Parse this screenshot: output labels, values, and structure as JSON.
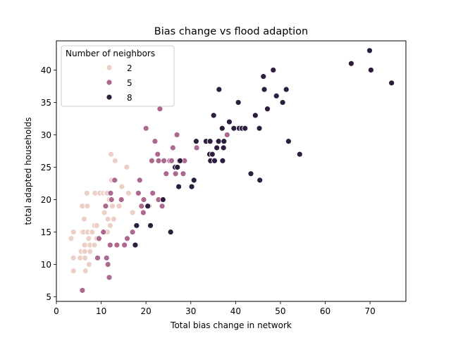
{
  "chart_data": {
    "type": "scatter",
    "title": "Bias change vs flood adaption",
    "xlabel": "Total bias change in network",
    "ylabel": "total adapted households",
    "xlim": [
      0,
      78
    ],
    "ylim": [
      4.3,
      44.5
    ],
    "xticks": [
      0,
      10,
      20,
      30,
      40,
      50,
      60,
      70
    ],
    "yticks": [
      5,
      10,
      15,
      20,
      25,
      30,
      35,
      40
    ],
    "grid": false,
    "legend": {
      "title": "Number of neighbors",
      "placement": "top-left"
    },
    "series": [
      {
        "name": "2",
        "color": "#ebd0c8",
        "points": [
          [
            3.3,
            14
          ],
          [
            3.8,
            15
          ],
          [
            3.8,
            11
          ],
          [
            3.8,
            9
          ],
          [
            5.3,
            11
          ],
          [
            5.5,
            12
          ],
          [
            5.8,
            19
          ],
          [
            5.8,
            15
          ],
          [
            6.0,
            15
          ],
          [
            6.2,
            17
          ],
          [
            6.3,
            13
          ],
          [
            6.3,
            12
          ],
          [
            6.4,
            11
          ],
          [
            6.5,
            9
          ],
          [
            6.8,
            21
          ],
          [
            6.9,
            19
          ],
          [
            7.0,
            15
          ],
          [
            7.2,
            14
          ],
          [
            7.3,
            10
          ],
          [
            7.5,
            13
          ],
          [
            7.5,
            12
          ],
          [
            7.9,
            15
          ],
          [
            8.0,
            15
          ],
          [
            8.5,
            16
          ],
          [
            8.5,
            13
          ],
          [
            8.6,
            21
          ],
          [
            9.0,
            16
          ],
          [
            9.0,
            14
          ],
          [
            9.7,
            21
          ],
          [
            10.5,
            21
          ],
          [
            10.7,
            18
          ],
          [
            11.1,
            21
          ],
          [
            11.3,
            21
          ],
          [
            11.4,
            15
          ],
          [
            11.5,
            17
          ],
          [
            11.8,
            20
          ],
          [
            12.0,
            16
          ],
          [
            12.2,
            27
          ],
          [
            12.3,
            23
          ],
          [
            12.5,
            19
          ],
          [
            12.8,
            17
          ],
          [
            13.1,
            26
          ],
          [
            13.2,
            23
          ],
          [
            14.0,
            19
          ],
          [
            14.6,
            22
          ],
          [
            15.7,
            25
          ],
          [
            16.1,
            21
          ],
          [
            17.0,
            18
          ]
        ]
      },
      {
        "name": "5",
        "color": "#ad6890",
        "points": [
          [
            5.8,
            6
          ],
          [
            9.2,
            11
          ],
          [
            9.5,
            14
          ],
          [
            10.5,
            15
          ],
          [
            11.0,
            19
          ],
          [
            11.2,
            11
          ],
          [
            11.5,
            10
          ],
          [
            11.8,
            8
          ],
          [
            12.0,
            13
          ],
          [
            12.1,
            21
          ],
          [
            12.3,
            20
          ],
          [
            13.0,
            23
          ],
          [
            13.5,
            13
          ],
          [
            14.5,
            20
          ],
          [
            15.2,
            13
          ],
          [
            15.8,
            14
          ],
          [
            17.0,
            15
          ],
          [
            18.3,
            21
          ],
          [
            18.6,
            23
          ],
          [
            19.0,
            19
          ],
          [
            19.4,
            18
          ],
          [
            19.5,
            20
          ],
          [
            20.0,
            31
          ],
          [
            20.6,
            19
          ],
          [
            21.3,
            26
          ],
          [
            21.5,
            21
          ],
          [
            22.0,
            29
          ],
          [
            22.6,
            27
          ],
          [
            22.8,
            26
          ],
          [
            22.8,
            20
          ],
          [
            23.1,
            34
          ],
          [
            23.6,
            19
          ],
          [
            24.0,
            26
          ],
          [
            24.5,
            24
          ],
          [
            25.3,
            26
          ],
          [
            25.7,
            26
          ],
          [
            26.0,
            28
          ],
          [
            26.5,
            25
          ],
          [
            26.6,
            24
          ],
          [
            26.9,
            30
          ],
          [
            27.4,
            26
          ],
          [
            28.3,
            24
          ],
          [
            28.6,
            26
          ],
          [
            31.3,
            28
          ],
          [
            38.1,
            30
          ],
          [
            40.5,
            31
          ]
        ]
      },
      {
        "name": "8",
        "color": "#2d1e3e",
        "points": [
          [
            17.6,
            13
          ],
          [
            17.9,
            16
          ],
          [
            20.4,
            19
          ],
          [
            21.0,
            16
          ],
          [
            23.8,
            20
          ],
          [
            25.5,
            15
          ],
          [
            26.5,
            25
          ],
          [
            27.0,
            25
          ],
          [
            27.3,
            22
          ],
          [
            27.6,
            26
          ],
          [
            30.2,
            22
          ],
          [
            30.7,
            23
          ],
          [
            31.2,
            29
          ],
          [
            33.4,
            29
          ],
          [
            34.2,
            27
          ],
          [
            34.3,
            29
          ],
          [
            34.4,
            26
          ],
          [
            34.8,
            27
          ],
          [
            35.1,
            33
          ],
          [
            35.3,
            26
          ],
          [
            35.8,
            28
          ],
          [
            36.2,
            29
          ],
          [
            36.3,
            37
          ],
          [
            37.0,
            31
          ],
          [
            37.1,
            26
          ],
          [
            37.3,
            28
          ],
          [
            37.4,
            29
          ],
          [
            38.6,
            32
          ],
          [
            39.6,
            31
          ],
          [
            40.6,
            35
          ],
          [
            40.8,
            31
          ],
          [
            41.4,
            31
          ],
          [
            42.1,
            31
          ],
          [
            43.4,
            24
          ],
          [
            44.4,
            33
          ],
          [
            45.3,
            31
          ],
          [
            45.4,
            23
          ],
          [
            46.2,
            39
          ],
          [
            46.4,
            37
          ],
          [
            47.1,
            34
          ],
          [
            48.4,
            40
          ],
          [
            49.1,
            36
          ],
          [
            50.5,
            35
          ],
          [
            51.3,
            37
          ],
          [
            51.8,
            29
          ],
          [
            54.3,
            27
          ],
          [
            65.8,
            41
          ],
          [
            69.9,
            43
          ],
          [
            70.2,
            40
          ],
          [
            74.8,
            38
          ]
        ]
      }
    ]
  }
}
